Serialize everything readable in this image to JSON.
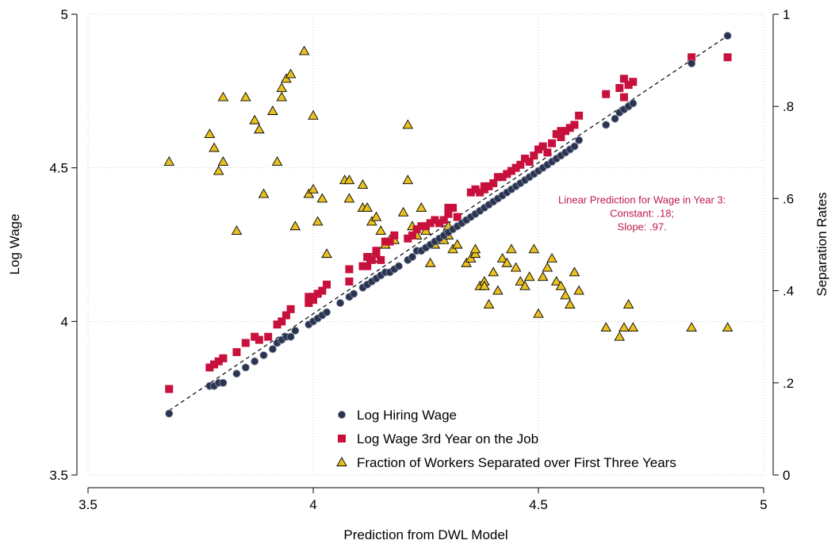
{
  "chart_data": {
    "type": "scatter",
    "title": "",
    "xlabel": "Prediction from DWL Model",
    "ylabel": "Log Wage",
    "y2label": "Separation Rates",
    "xlim": [
      3.5,
      5
    ],
    "ylim": [
      3.5,
      5
    ],
    "y2lim": [
      0,
      1
    ],
    "xticks": [
      3.5,
      4,
      4.5,
      5
    ],
    "xtick_labels": [
      "3.5",
      "4",
      "4.5",
      "5"
    ],
    "yticks": [
      3.5,
      4,
      4.5,
      5
    ],
    "ytick_labels": [
      "3.5",
      "4",
      "4.5",
      "5"
    ],
    "y2ticks": [
      0,
      0.2,
      0.4,
      0.6,
      0.8,
      1
    ],
    "y2tick_labels": [
      "0",
      ".2",
      ".4",
      ".6",
      ".8",
      "1"
    ],
    "grid": true,
    "legend_position": "bottom-center",
    "annotation": {
      "lines": [
        "Linear Prediction for Wage in Year 3:",
        "Constant: .18;",
        "Slope: .97."
      ],
      "x": 4.73,
      "y": 4.34
    },
    "fit_line": {
      "name": "",
      "x": [
        3.68,
        4.92
      ],
      "y": [
        3.71,
        4.93
      ]
    },
    "series": [
      {
        "name": "Log Hiring Wage",
        "axis": "left",
        "marker": "circle",
        "color": "#2a3450",
        "x": [
          3.68,
          3.77,
          3.78,
          3.79,
          3.8,
          3.83,
          3.85,
          3.87,
          3.89,
          3.91,
          3.92,
          3.93,
          3.94,
          3.95,
          3.96,
          3.99,
          4.0,
          4.01,
          4.02,
          4.03,
          4.06,
          4.08,
          4.09,
          4.11,
          4.12,
          4.13,
          4.14,
          4.15,
          4.16,
          4.17,
          4.18,
          4.19,
          4.21,
          4.22,
          4.23,
          4.24,
          4.25,
          4.26,
          4.27,
          4.28,
          4.29,
          4.3,
          4.31,
          4.32,
          4.33,
          4.34,
          4.35,
          4.36,
          4.37,
          4.38,
          4.39,
          4.4,
          4.41,
          4.42,
          4.43,
          4.44,
          4.45,
          4.46,
          4.47,
          4.48,
          4.49,
          4.5,
          4.51,
          4.52,
          4.53,
          4.54,
          4.55,
          4.56,
          4.57,
          4.58,
          4.59,
          4.65,
          4.67,
          4.68,
          4.69,
          4.7,
          4.71,
          4.84,
          4.92
        ],
        "y": [
          3.7,
          3.79,
          3.79,
          3.8,
          3.8,
          3.83,
          3.85,
          3.87,
          3.89,
          3.91,
          3.93,
          3.94,
          3.95,
          3.95,
          3.97,
          3.99,
          4.0,
          4.01,
          4.02,
          4.03,
          4.06,
          4.08,
          4.09,
          4.11,
          4.12,
          4.13,
          4.14,
          4.15,
          4.16,
          4.16,
          4.17,
          4.18,
          4.2,
          4.21,
          4.23,
          4.23,
          4.24,
          4.25,
          4.26,
          4.27,
          4.28,
          4.29,
          4.3,
          4.31,
          4.32,
          4.33,
          4.34,
          4.35,
          4.36,
          4.37,
          4.38,
          4.39,
          4.4,
          4.41,
          4.42,
          4.43,
          4.44,
          4.45,
          4.46,
          4.47,
          4.48,
          4.49,
          4.5,
          4.51,
          4.52,
          4.53,
          4.54,
          4.55,
          4.56,
          4.57,
          4.59,
          4.64,
          4.66,
          4.68,
          4.69,
          4.7,
          4.71,
          4.84,
          4.93
        ]
      },
      {
        "name": "Log Wage 3rd Year on the Job",
        "axis": "left",
        "marker": "square",
        "color": "#c8103c",
        "x": [
          3.68,
          3.77,
          3.78,
          3.79,
          3.8,
          3.83,
          3.85,
          3.87,
          3.88,
          3.9,
          3.92,
          3.93,
          3.94,
          3.95,
          3.99,
          3.99,
          4.0,
          4.0,
          4.01,
          4.02,
          4.03,
          4.08,
          4.08,
          4.11,
          4.12,
          4.12,
          4.13,
          4.14,
          4.14,
          4.15,
          4.16,
          4.17,
          4.18,
          4.21,
          4.22,
          4.23,
          4.24,
          4.25,
          4.26,
          4.27,
          4.28,
          4.29,
          4.3,
          4.3,
          4.31,
          4.32,
          4.35,
          4.36,
          4.37,
          4.38,
          4.38,
          4.39,
          4.4,
          4.41,
          4.42,
          4.43,
          4.44,
          4.45,
          4.46,
          4.47,
          4.48,
          4.49,
          4.5,
          4.51,
          4.52,
          4.53,
          4.54,
          4.55,
          4.55,
          4.56,
          4.57,
          4.58,
          4.59,
          4.65,
          4.68,
          4.69,
          4.69,
          4.7,
          4.71,
          4.84,
          4.92
        ],
        "y": [
          3.78,
          3.85,
          3.86,
          3.87,
          3.88,
          3.9,
          3.93,
          3.95,
          3.94,
          3.95,
          3.99,
          4.0,
          4.02,
          4.04,
          4.08,
          4.06,
          4.07,
          4.08,
          4.09,
          4.1,
          4.12,
          4.13,
          4.17,
          4.18,
          4.21,
          4.18,
          4.2,
          4.22,
          4.23,
          4.2,
          4.26,
          4.26,
          4.28,
          4.27,
          4.28,
          4.3,
          4.31,
          4.31,
          4.32,
          4.33,
          4.32,
          4.33,
          4.35,
          4.37,
          4.37,
          4.34,
          4.42,
          4.43,
          4.42,
          4.43,
          4.44,
          4.44,
          4.45,
          4.47,
          4.47,
          4.48,
          4.49,
          4.5,
          4.51,
          4.53,
          4.52,
          4.54,
          4.56,
          4.57,
          4.55,
          4.58,
          4.61,
          4.6,
          4.62,
          4.62,
          4.63,
          4.64,
          4.67,
          4.74,
          4.76,
          4.73,
          4.79,
          4.77,
          4.78,
          4.86,
          4.86
        ]
      },
      {
        "name": "Fraction of Workers Separated over First Three Years",
        "axis": "right",
        "marker": "triangle",
        "color": "#e8c020",
        "x": [
          3.68,
          3.77,
          3.78,
          3.79,
          3.8,
          3.8,
          3.83,
          3.85,
          3.87,
          3.88,
          3.89,
          3.91,
          3.92,
          3.93,
          3.93,
          3.94,
          3.95,
          3.96,
          3.98,
          3.99,
          4.0,
          4.0,
          4.01,
          4.02,
          4.03,
          4.07,
          4.08,
          4.08,
          4.11,
          4.11,
          4.12,
          4.13,
          4.13,
          4.14,
          4.15,
          4.16,
          4.17,
          4.18,
          4.2,
          4.21,
          4.21,
          4.22,
          4.23,
          4.24,
          4.25,
          4.26,
          4.27,
          4.28,
          4.29,
          4.29,
          4.3,
          4.3,
          4.31,
          4.32,
          4.34,
          4.35,
          4.36,
          4.36,
          4.37,
          4.38,
          4.38,
          4.39,
          4.4,
          4.41,
          4.42,
          4.43,
          4.44,
          4.45,
          4.46,
          4.47,
          4.48,
          4.49,
          4.5,
          4.51,
          4.52,
          4.53,
          4.54,
          4.55,
          4.56,
          4.57,
          4.58,
          4.59,
          4.65,
          4.68,
          4.69,
          4.7,
          4.71,
          4.84,
          4.92
        ],
        "y": [
          0.68,
          0.74,
          0.71,
          0.66,
          0.82,
          0.68,
          0.53,
          0.82,
          0.77,
          0.75,
          0.61,
          0.79,
          0.68,
          0.82,
          0.84,
          0.86,
          0.87,
          0.54,
          0.92,
          0.61,
          0.78,
          0.62,
          0.55,
          0.6,
          0.48,
          0.64,
          0.6,
          0.64,
          0.58,
          0.63,
          0.58,
          0.47,
          0.55,
          0.56,
          0.53,
          0.5,
          0.51,
          0.51,
          0.57,
          0.64,
          0.76,
          0.54,
          0.52,
          0.58,
          0.53,
          0.46,
          0.5,
          0.51,
          0.51,
          0.52,
          0.52,
          0.54,
          0.49,
          0.5,
          0.46,
          0.47,
          0.48,
          0.49,
          0.41,
          0.42,
          0.41,
          0.37,
          0.44,
          0.4,
          0.47,
          0.46,
          0.49,
          0.45,
          0.42,
          0.41,
          0.43,
          0.49,
          0.35,
          0.43,
          0.45,
          0.47,
          0.42,
          0.41,
          0.39,
          0.37,
          0.44,
          0.4,
          0.32,
          0.3,
          0.32,
          0.37,
          0.32,
          0.32,
          0.32
        ]
      }
    ]
  }
}
